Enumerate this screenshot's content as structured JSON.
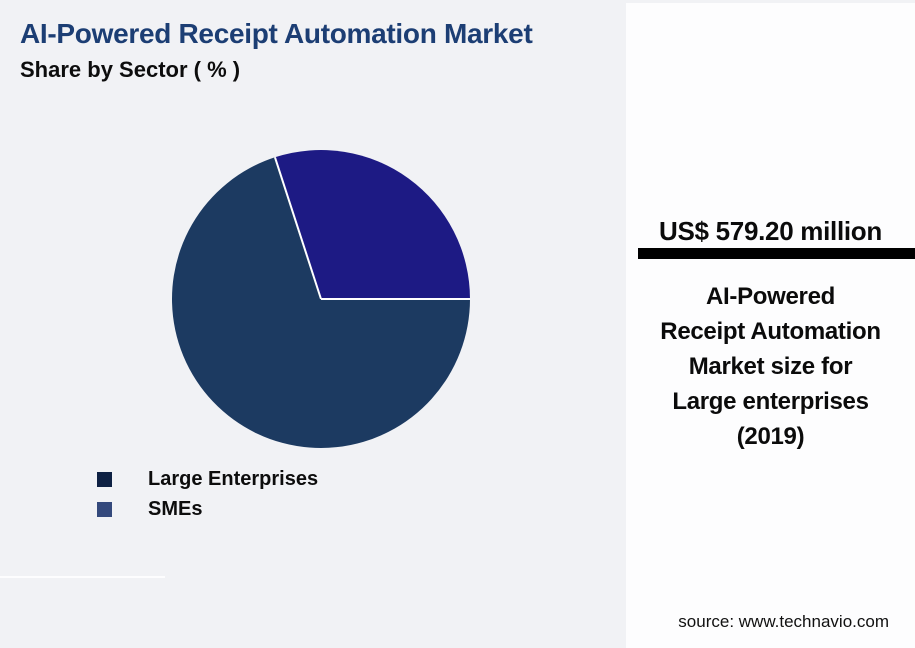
{
  "colors": {
    "background": "#f1f2f5",
    "panel_background": "#fdfdfe",
    "title_blue": "#1c3e74",
    "text_black": "#0d0d0d",
    "divider_bar_black": "#000000"
  },
  "header": {
    "title": "AI-Powered Receipt Automation Market",
    "subtitle": "Share by Sector ( % )"
  },
  "chart_data": {
    "type": "pie",
    "title": "AI-Powered Receipt Automation Market Share by Sector ( % )",
    "categories": [
      "Large Enterprises",
      "SMEs"
    ],
    "values": [
      70,
      30
    ],
    "slices": [
      {
        "label": "SMEs",
        "value": 30,
        "color": "#1d1a84"
      },
      {
        "label": "Large Enterprises",
        "value": 70,
        "color": "#1c3a61"
      }
    ],
    "start_angle_deg": 0,
    "direction": "counterclockwise",
    "separator_color": "#ffffff",
    "legend_position": "bottom-left",
    "data_labels": "none"
  },
  "legend": {
    "items": [
      {
        "label": "Large Enterprises",
        "swatch_color": "#0e2143"
      },
      {
        "label": "SMEs",
        "swatch_color": "#34497c"
      }
    ]
  },
  "panel": {
    "value": "US$ 579.20 million",
    "description_lines": [
      "AI-Powered",
      "Receipt Automation",
      "Market size for",
      "Large enterprises",
      "(2019)"
    ],
    "source": "source: www.technavio.com"
  }
}
